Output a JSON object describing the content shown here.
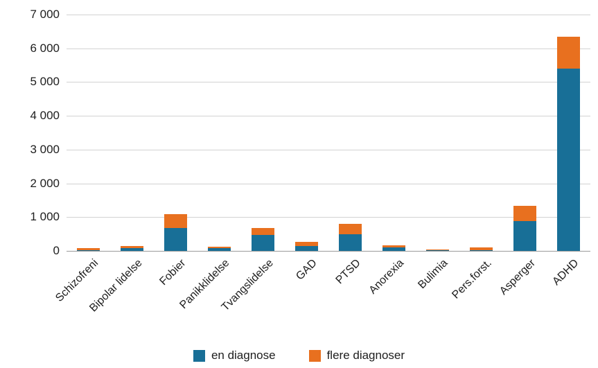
{
  "chart_data": {
    "type": "bar",
    "stacked": true,
    "orientation": "vertical",
    "title": "",
    "xlabel": "",
    "ylabel": "",
    "categories": [
      "Schizofreni",
      "Bipolar lidelse",
      "Fobier",
      "Panikklidelse",
      "Tvangslidelse",
      "GAD",
      "PTSD",
      "Anorexia",
      "Bulimia",
      "Pers.forst.",
      "Asperger",
      "ADHD"
    ],
    "series": [
      {
        "name": "en diagnose",
        "color": "#186f97",
        "values": [
          15,
          85,
          670,
          80,
          470,
          150,
          500,
          110,
          25,
          20,
          880,
          5400
        ]
      },
      {
        "name": "flere diagnoser",
        "color": "#e8701f",
        "values": [
          70,
          65,
          410,
          45,
          210,
          110,
          300,
          55,
          10,
          85,
          450,
          950
        ]
      }
    ],
    "ylim": [
      0,
      7000
    ],
    "ytick_step": 1000,
    "ytick_labels": [
      "0",
      "1 000",
      "2 000",
      "3 000",
      "4 000",
      "5 000",
      "6 000",
      "7 000"
    ],
    "grid": true,
    "legend_position": "bottom"
  },
  "colors": {
    "series_blue": "#186f97",
    "series_orange": "#e8701f",
    "gridline": "#d2d2d2",
    "axis_line": "#9a9a9a",
    "text": "#1d1d1d"
  }
}
